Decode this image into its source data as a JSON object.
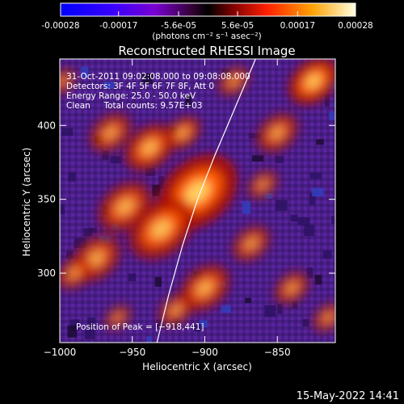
{
  "chart_data": {
    "type": "heatmap",
    "title": "Reconstructed RHESSI Image",
    "xlabel": "Heliocentric X (arcsec)",
    "ylabel": "Heliocentric Y (arcsec)",
    "xlim": [
      -1000,
      -810
    ],
    "ylim": [
      253,
      445
    ],
    "xticks": [
      -1000,
      -950,
      -900,
      -850
    ],
    "xtick_labels": [
      "−1000",
      "−950",
      "−900",
      "−850"
    ],
    "yticks": [
      300,
      350,
      400
    ],
    "ytick_labels": [
      "300",
      "350",
      "400"
    ],
    "colorbar": {
      "range": [
        -0.00028,
        0.00028
      ],
      "ticks": [
        -0.00028,
        -0.00017,
        -5.6e-05,
        5.6e-05,
        0.00017,
        0.00028
      ],
      "tick_labels": [
        "-0.00028",
        "-0.00017",
        "-5.6e-05",
        "5.6e-05",
        "0.00017",
        "0.00028"
      ],
      "units": "(photons cm⁻² s⁻¹ asec⁻²)"
    },
    "annotations": [
      "31-Oct-2011 09:02:08.000 to 09:08:08.000",
      "Detectors: 3F 4F 5F 6F 7F 8F, Att 0",
      "Energy Range: 25.0 - 50.0 keV",
      "Clean     Total counts: 9.57E+03"
    ],
    "peak_label": "Position of Peak = [−918,441]",
    "peak": [
      -918,
      441
    ],
    "limb_curve": [
      [
        -933,
        253
      ],
      [
        -925,
        285
      ],
      [
        -915,
        320
      ],
      [
        -905,
        350
      ],
      [
        -893,
        380
      ],
      [
        -880,
        410
      ],
      [
        -865,
        445
      ]
    ],
    "emission_blobs": [
      {
        "x": -905,
        "y": 355,
        "s": 22,
        "a": 1.0
      },
      {
        "x": -930,
        "y": 330,
        "s": 18,
        "a": 0.85
      },
      {
        "x": -955,
        "y": 345,
        "s": 15,
        "a": 0.75
      },
      {
        "x": -975,
        "y": 310,
        "s": 14,
        "a": 0.7
      },
      {
        "x": -990,
        "y": 300,
        "s": 10,
        "a": 0.6
      },
      {
        "x": -938,
        "y": 385,
        "s": 14,
        "a": 0.8
      },
      {
        "x": -965,
        "y": 395,
        "s": 12,
        "a": 0.65
      },
      {
        "x": -915,
        "y": 395,
        "s": 10,
        "a": 0.7
      },
      {
        "x": -900,
        "y": 290,
        "s": 14,
        "a": 0.75
      },
      {
        "x": -920,
        "y": 275,
        "s": 10,
        "a": 0.6
      },
      {
        "x": -850,
        "y": 395,
        "s": 12,
        "a": 0.65
      },
      {
        "x": -825,
        "y": 430,
        "s": 14,
        "a": 0.9
      },
      {
        "x": -860,
        "y": 360,
        "s": 9,
        "a": 0.55
      },
      {
        "x": -868,
        "y": 320,
        "s": 11,
        "a": 0.6
      },
      {
        "x": -840,
        "y": 290,
        "s": 10,
        "a": 0.6
      },
      {
        "x": -815,
        "y": 270,
        "s": 9,
        "a": 0.55
      },
      {
        "x": -998,
        "y": 430,
        "s": 8,
        "a": 0.55
      },
      {
        "x": -960,
        "y": 270,
        "s": 8,
        "a": 0.5
      },
      {
        "x": -880,
        "y": 430,
        "s": 9,
        "a": 0.6
      }
    ]
  },
  "footer": {
    "timestamp": "15-May-2022 14:41"
  }
}
